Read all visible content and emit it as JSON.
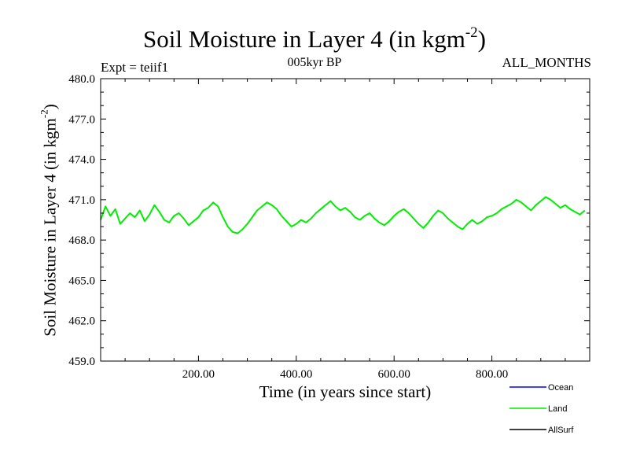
{
  "chart_data": {
    "type": "line",
    "title": "Soil Moisture in Layer 4 (in kgm",
    "title_superscript": "-2",
    "title_suffix": ")",
    "experiment_label": "Expt = teiif1",
    "period_label": "005kyr BP",
    "season_label": "ALL_MONTHS",
    "xlabel": "Time (in years since start)",
    "ylabel": "Soil Moisture in Layer 4 (in kgm",
    "ylabel_superscript": "-2",
    "ylabel_suffix": ")",
    "xlim": [
      0,
      1000
    ],
    "ylim": [
      459.0,
      480.0
    ],
    "x_ticks": [
      200,
      400,
      600,
      800
    ],
    "x_tick_labels": [
      "200.00",
      "400.00",
      "600.00",
      "800.00"
    ],
    "y_ticks": [
      459,
      462,
      465,
      468,
      471,
      474,
      477,
      480
    ],
    "y_tick_labels": [
      "459.0",
      "462.0",
      "465.0",
      "468.0",
      "471.0",
      "474.0",
      "477.0",
      "480.0"
    ],
    "grid": false,
    "legend_position": "bottom-right, outside plot",
    "legend": [
      {
        "name": "Ocean",
        "color": "#0000ff"
      },
      {
        "name": "Land",
        "color": "#00ee00"
      },
      {
        "name": "AllSurf",
        "color": "#000000"
      }
    ],
    "series": [
      {
        "name": "Land",
        "color": "#00ee00",
        "x": [
          0,
          10,
          20,
          30,
          40,
          50,
          60,
          70,
          80,
          90,
          100,
          110,
          120,
          130,
          140,
          150,
          160,
          170,
          180,
          190,
          200,
          210,
          220,
          230,
          240,
          250,
          260,
          270,
          280,
          290,
          300,
          310,
          320,
          330,
          340,
          350,
          360,
          370,
          380,
          390,
          400,
          410,
          420,
          430,
          440,
          450,
          460,
          470,
          480,
          490,
          500,
          510,
          520,
          530,
          540,
          550,
          560,
          570,
          580,
          590,
          600,
          610,
          620,
          630,
          640,
          650,
          660,
          670,
          680,
          690,
          700,
          710,
          720,
          730,
          740,
          750,
          760,
          770,
          780,
          790,
          800,
          810,
          820,
          830,
          840,
          850,
          860,
          870,
          880,
          890,
          900,
          910,
          920,
          930,
          940,
          950,
          960,
          970,
          980,
          990
        ],
        "y": [
          469.5,
          470.5,
          469.8,
          470.3,
          469.2,
          469.6,
          470.0,
          469.7,
          470.2,
          469.4,
          469.9,
          470.6,
          470.1,
          469.5,
          469.3,
          469.8,
          470.0,
          469.6,
          469.1,
          469.4,
          469.7,
          470.2,
          470.4,
          470.8,
          470.5,
          469.7,
          469.0,
          468.6,
          468.5,
          468.8,
          469.2,
          469.7,
          470.2,
          470.5,
          470.8,
          470.6,
          470.3,
          469.8,
          469.4,
          469.0,
          469.2,
          469.5,
          469.3,
          469.6,
          470.0,
          470.3,
          470.6,
          470.9,
          470.5,
          470.2,
          470.4,
          470.1,
          469.7,
          469.5,
          469.8,
          470.0,
          469.6,
          469.3,
          469.1,
          469.4,
          469.8,
          470.1,
          470.3,
          470.0,
          469.6,
          469.2,
          468.9,
          469.3,
          469.8,
          470.2,
          470.0,
          469.6,
          469.3,
          469.0,
          468.8,
          469.2,
          469.5,
          469.2,
          469.4,
          469.7,
          469.8,
          470.0,
          470.3,
          470.5,
          470.7,
          471.0,
          470.8,
          470.5,
          470.2,
          470.6,
          470.9,
          471.2,
          471.0,
          470.7,
          470.4,
          470.6,
          470.3,
          470.1,
          469.9,
          470.2
        ]
      }
    ]
  }
}
